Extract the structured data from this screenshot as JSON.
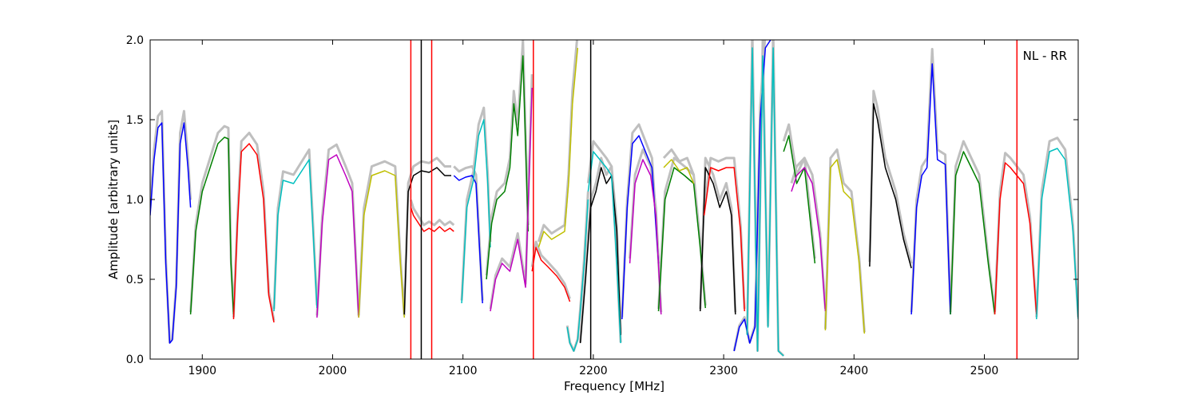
{
  "chart_data": {
    "type": "line",
    "annotation": "NL - RR",
    "xlabel": "Frequency [MHz]",
    "ylabel": "Amplitude [arbitrary units]",
    "xlim": [
      1860,
      2572
    ],
    "ylim": [
      0.0,
      2.0
    ],
    "x_ticks": [
      1900,
      2000,
      2100,
      2200,
      2300,
      2400,
      2500
    ],
    "y_ticks": [
      "0.0",
      "0.5",
      "1.0",
      "1.5",
      "2.0"
    ],
    "grid": false,
    "legend": "none",
    "background_series_color": "#bfbfbf",
    "series": [
      {
        "color": "#0000ff",
        "x": [
          1860,
          1863,
          1866,
          1869,
          1872,
          1875,
          1877,
          1880,
          1883,
          1886,
          1889,
          1891
        ],
        "y": [
          0.9,
          1.25,
          1.45,
          1.48,
          0.6,
          0.1,
          0.12,
          0.45,
          1.35,
          1.48,
          1.2,
          0.95
        ]
      },
      {
        "color": "#007f00",
        "x": [
          1891,
          1895,
          1900,
          1906,
          1912,
          1917,
          1920,
          1922,
          1924
        ],
        "y": [
          0.28,
          0.8,
          1.05,
          1.2,
          1.35,
          1.39,
          1.38,
          0.6,
          0.28
        ]
      },
      {
        "color": "#ff0000",
        "x": [
          1924,
          1927,
          1930,
          1936,
          1942,
          1947,
          1951,
          1955
        ],
        "y": [
          0.25,
          0.85,
          1.3,
          1.35,
          1.28,
          1.0,
          0.4,
          0.23
        ]
      },
      {
        "color": "#00bfbf",
        "x": [
          1955,
          1958,
          1962,
          1970,
          1978,
          1982,
          1985,
          1988
        ],
        "y": [
          0.3,
          0.9,
          1.12,
          1.1,
          1.2,
          1.25,
          0.8,
          0.32
        ]
      },
      {
        "color": "#bf00bf",
        "x": [
          1988,
          1992,
          1997,
          2003,
          2010,
          2015,
          2020
        ],
        "y": [
          0.26,
          0.85,
          1.25,
          1.28,
          1.15,
          1.05,
          0.26
        ]
      },
      {
        "color": "#bfbf00",
        "x": [
          2020,
          2024,
          2030,
          2040,
          2048,
          2052,
          2055
        ],
        "y": [
          0.26,
          0.9,
          1.15,
          1.18,
          1.15,
          0.6,
          0.26
        ]
      },
      {
        "color": "#000000",
        "x": [
          2055,
          2058,
          2062,
          2068,
          2074,
          2080,
          2086,
          2091
        ],
        "y": [
          0.28,
          1.05,
          1.15,
          1.18,
          1.17,
          1.2,
          1.15,
          1.15
        ]
      },
      {
        "color": "#ff0000",
        "x": [
          2060,
          2062,
          2066,
          2070,
          2074,
          2078,
          2082,
          2086,
          2090,
          2093
        ],
        "y": [
          0.95,
          0.9,
          0.85,
          0.8,
          0.82,
          0.8,
          0.83,
          0.8,
          0.82,
          0.8
        ]
      },
      {
        "color": "#0000ff",
        "x": [
          2093,
          2097,
          2102,
          2107,
          2110,
          2112,
          2115
        ],
        "y": [
          1.15,
          1.12,
          1.14,
          1.15,
          1.1,
          0.8,
          0.35
        ]
      },
      {
        "color": "#00bfbf",
        "x": [
          2099,
          2103,
          2108,
          2112,
          2116,
          2119,
          2121
        ],
        "y": [
          0.35,
          0.95,
          1.12,
          1.4,
          1.5,
          1.1,
          0.7
        ]
      },
      {
        "color": "#007f00",
        "x": [
          2118,
          2122,
          2126,
          2132,
          2136,
          2139,
          2142,
          2146,
          2150
        ],
        "y": [
          0.5,
          0.85,
          1.0,
          1.05,
          1.2,
          1.6,
          1.4,
          1.9,
          0.8
        ]
      },
      {
        "color": "#bf00bf",
        "x": [
          2121,
          2125,
          2130,
          2136,
          2142,
          2148,
          2153
        ],
        "y": [
          0.3,
          0.5,
          0.6,
          0.55,
          0.75,
          0.45,
          1.7
        ]
      },
      {
        "color": "#bfbf00",
        "x": [
          2158,
          2162,
          2168,
          2174,
          2178,
          2181,
          2184,
          2188
        ],
        "y": [
          0.7,
          0.8,
          0.75,
          0.78,
          0.8,
          1.1,
          1.6,
          1.95
        ]
      },
      {
        "color": "#ff0000",
        "x": [
          2153,
          2156,
          2160,
          2165,
          2172,
          2178,
          2182
        ],
        "y": [
          0.55,
          0.7,
          0.62,
          0.58,
          0.52,
          0.45,
          0.36
        ]
      },
      {
        "color": "#00bfbf",
        "x": [
          2180,
          2182,
          2185,
          2188,
          2190,
          2193,
          2196
        ],
        "y": [
          0.2,
          0.1,
          0.05,
          0.12,
          0.3,
          0.6,
          1.0
        ]
      },
      {
        "color": "#000000",
        "x": [
          2190,
          2194,
          2198,
          2202,
          2206,
          2210,
          2214,
          2218,
          2221
        ],
        "y": [
          0.1,
          0.5,
          0.95,
          1.05,
          1.2,
          1.1,
          1.15,
          0.8,
          0.15
        ]
      },
      {
        "color": "#00bfbf",
        "x": [
          2196,
          2200,
          2205,
          2210,
          2214,
          2218,
          2221
        ],
        "y": [
          1.05,
          1.3,
          1.25,
          1.2,
          1.15,
          0.6,
          0.1
        ]
      },
      {
        "color": "#0000ff",
        "x": [
          2222,
          2226,
          2230,
          2235,
          2240,
          2245,
          2250
        ],
        "y": [
          0.25,
          0.95,
          1.35,
          1.4,
          1.3,
          1.2,
          0.6
        ]
      },
      {
        "color": "#bf00bf",
        "x": [
          2228,
          2232,
          2238,
          2244,
          2248,
          2252
        ],
        "y": [
          0.6,
          1.1,
          1.25,
          1.15,
          0.9,
          0.28
        ]
      },
      {
        "color": "#007f00",
        "x": [
          2250,
          2255,
          2262,
          2270,
          2277,
          2282,
          2286
        ],
        "y": [
          0.3,
          1.0,
          1.2,
          1.15,
          1.1,
          0.7,
          0.32
        ]
      },
      {
        "color": "#bfbf00",
        "x": [
          2254,
          2260,
          2266,
          2272,
          2277
        ],
        "y": [
          1.2,
          1.25,
          1.18,
          1.2,
          1.1
        ]
      },
      {
        "color": "#000000",
        "x": [
          2282,
          2286,
          2292,
          2297,
          2302,
          2306,
          2309
        ],
        "y": [
          0.3,
          1.2,
          1.1,
          0.95,
          1.05,
          0.9,
          0.28
        ]
      },
      {
        "color": "#ff0000",
        "x": [
          2285,
          2290,
          2296,
          2302,
          2308,
          2313,
          2316
        ],
        "y": [
          0.9,
          1.2,
          1.18,
          1.2,
          1.2,
          0.8,
          0.3
        ]
      },
      {
        "color": "#0000ff",
        "x": [
          2308,
          2312,
          2316,
          2320,
          2324,
          2328,
          2332,
          2336
        ],
        "y": [
          0.05,
          0.2,
          0.25,
          0.1,
          0.2,
          1.5,
          1.95,
          2.0
        ]
      },
      {
        "color": "#00bfbf",
        "x": [
          2318,
          2322,
          2326,
          2330,
          2334,
          2338,
          2342,
          2346
        ],
        "y": [
          0.15,
          1.95,
          0.05,
          1.9,
          0.2,
          1.95,
          0.05,
          0.02
        ]
      },
      {
        "color": "#007f00",
        "x": [
          2346,
          2350,
          2356,
          2362,
          2366,
          2370
        ],
        "y": [
          1.3,
          1.4,
          1.1,
          1.2,
          0.9,
          0.6
        ]
      },
      {
        "color": "#bf00bf",
        "x": [
          2352,
          2356,
          2362,
          2368,
          2374,
          2378
        ],
        "y": [
          1.05,
          1.15,
          1.2,
          1.1,
          0.75,
          0.3
        ]
      },
      {
        "color": "#bfbf00",
        "x": [
          2378,
          2382,
          2387,
          2392,
          2398,
          2404,
          2408
        ],
        "y": [
          0.18,
          1.2,
          1.25,
          1.05,
          1.0,
          0.6,
          0.16
        ]
      },
      {
        "color": "#000000",
        "x": [
          2412,
          2415,
          2418,
          2424,
          2432,
          2438,
          2444
        ],
        "y": [
          0.58,
          1.6,
          1.5,
          1.2,
          1.0,
          0.75,
          0.57
        ]
      },
      {
        "color": "#0000ff",
        "x": [
          2444,
          2448,
          2452,
          2456,
          2460,
          2464,
          2470,
          2474
        ],
        "y": [
          0.28,
          0.95,
          1.15,
          1.2,
          1.85,
          1.25,
          1.22,
          0.28
        ]
      },
      {
        "color": "#007f00",
        "x": [
          2474,
          2478,
          2484,
          2490,
          2496,
          2503,
          2508
        ],
        "y": [
          0.28,
          1.15,
          1.3,
          1.2,
          1.1,
          0.6,
          0.28
        ]
      },
      {
        "color": "#ff0000",
        "x": [
          2508,
          2512,
          2516,
          2520,
          2525,
          2530,
          2535,
          2540
        ],
        "y": [
          0.28,
          1.0,
          1.23,
          1.2,
          1.15,
          1.1,
          0.85,
          0.28
        ]
      },
      {
        "color": "#00bfbf",
        "x": [
          2540,
          2544,
          2550,
          2556,
          2562,
          2568,
          2572
        ],
        "y": [
          0.25,
          1.0,
          1.3,
          1.32,
          1.25,
          0.8,
          0.25
        ]
      }
    ],
    "spikes": [
      {
        "color": "#ff0000",
        "x": 2060,
        "y": 2.0
      },
      {
        "color": "#000000",
        "x": 2068,
        "y": 2.0
      },
      {
        "color": "#ff0000",
        "x": 2076,
        "y": 2.0
      },
      {
        "color": "#ff0000",
        "x": 2154,
        "y": 2.0
      },
      {
        "color": "#000000",
        "x": 2198,
        "y": 2.0
      },
      {
        "color": "#ff0000",
        "x": 2525,
        "y": 2.0
      }
    ]
  }
}
